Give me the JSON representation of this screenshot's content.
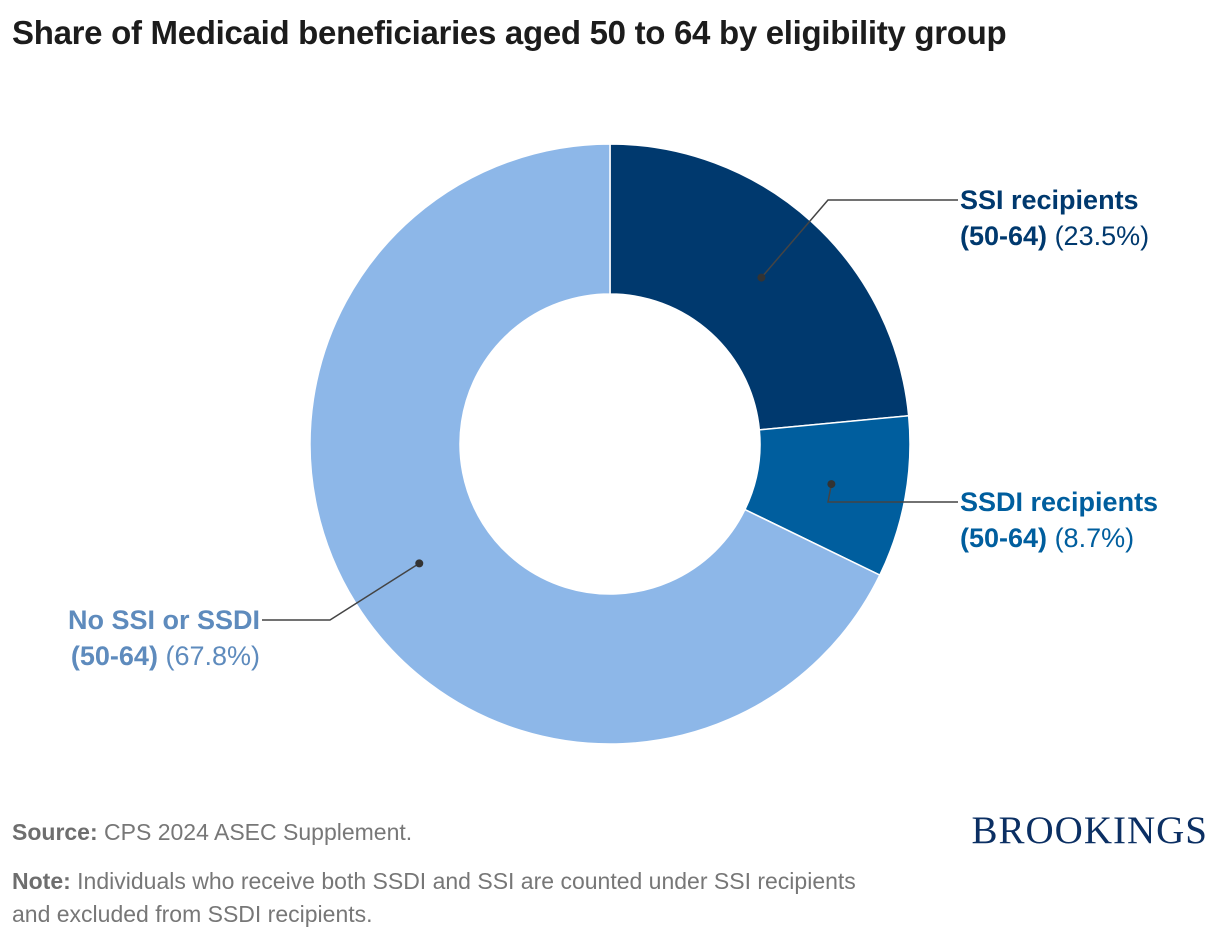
{
  "title": "Share of Medicaid beneficiaries aged 50 to 64 by eligibility group",
  "chart_data": {
    "type": "pie",
    "donut": true,
    "title": "Share of Medicaid beneficiaries aged 50 to 64 by eligibility group",
    "slices": [
      {
        "name": "SSI recipients (50-64)",
        "name_line1": "SSI recipients",
        "name_line2": "(50-64)",
        "value": 23.5,
        "value_label": "(23.5%)",
        "color": "#00396e"
      },
      {
        "name": "SSDI recipients (50-64)",
        "name_line1": "SSDI recipients",
        "name_line2": "(50-64)",
        "value": 8.7,
        "value_label": "(8.7%)",
        "color": "#005e9e"
      },
      {
        "name": "No SSI or SSDI (50-64)",
        "name_line1": "No SSI or SSDI",
        "name_line2": "(50-64)",
        "value": 67.8,
        "value_label": "(67.8%)",
        "color": "#8db7e8"
      }
    ]
  },
  "label_colors": [
    "#00396e",
    "#005e9e",
    "#5e8bbd"
  ],
  "footer": {
    "source_label": "Source:",
    "source_text": "CPS 2024 ASEC Supplement.",
    "note_label": "Note:",
    "note_text": "Individuals who receive both SSDI and SSI are counted under SSI recipients and excluded from SSDI recipients."
  },
  "logo": "BROOKINGS"
}
